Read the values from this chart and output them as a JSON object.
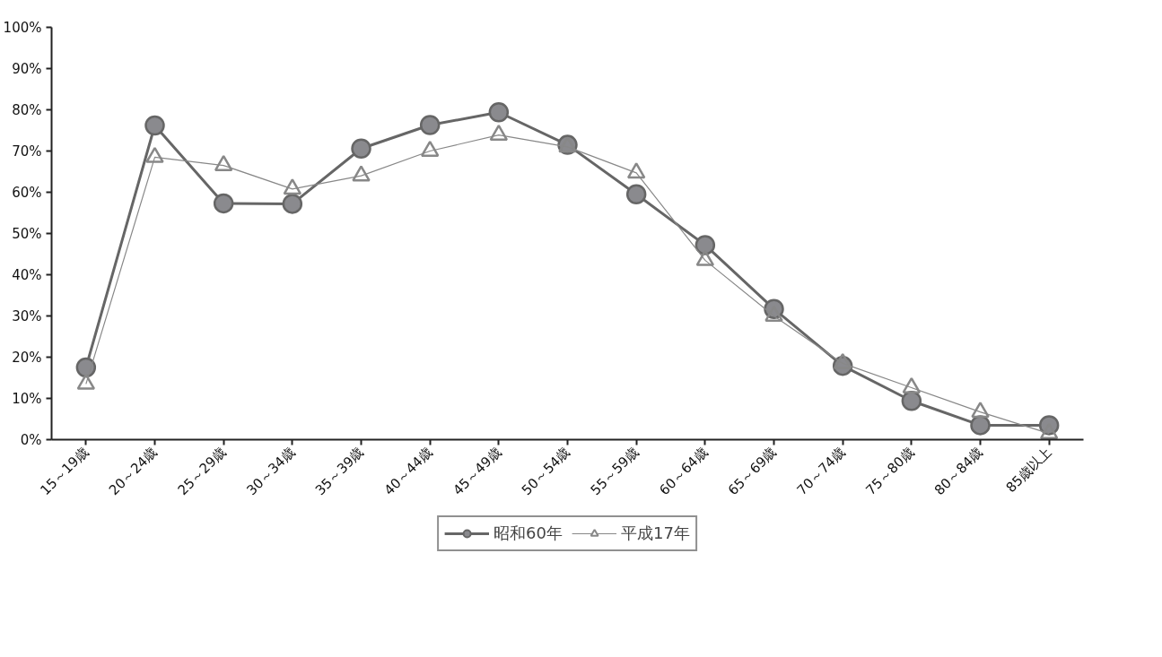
{
  "chart_data": {
    "type": "line",
    "categories": [
      "15～19歳",
      "20～24歳",
      "25～29歳",
      "30～34歳",
      "35～39歳",
      "40～44歳",
      "45～49歳",
      "50～54歳",
      "55～59歳",
      "60～64歳",
      "65～69歳",
      "70～74歳",
      "75～80歳",
      "80～84歳",
      "85歳以上"
    ],
    "series": [
      {
        "name": "昭和60年",
        "color": "#666666",
        "marker": "circle",
        "values": [
          17.5,
          76.2,
          57.3,
          57.2,
          70.6,
          76.3,
          79.4,
          71.5,
          59.5,
          47.2,
          31.7,
          17.9,
          9.4,
          3.5,
          3.5
        ]
      },
      {
        "name": "平成17年",
        "color": "#888888",
        "marker": "triangle",
        "values": [
          13.5,
          68.5,
          66.5,
          60.8,
          64.0,
          70.0,
          73.9,
          71.0,
          64.7,
          43.5,
          30.0,
          18.5,
          12.6,
          6.7,
          1.5
        ]
      }
    ],
    "ylim": [
      0,
      100
    ],
    "yticks": [
      {
        "value": 0,
        "label": "0%"
      },
      {
        "value": 10,
        "label": "10%"
      },
      {
        "value": 20,
        "label": "20%"
      },
      {
        "value": 30,
        "label": "30%"
      },
      {
        "value": 40,
        "label": "40%"
      },
      {
        "value": 50,
        "label": "50%"
      },
      {
        "value": 60,
        "label": "60%"
      },
      {
        "value": 70,
        "label": "70%"
      },
      {
        "value": 80,
        "label": "80%"
      },
      {
        "value": 90,
        "label": "90%"
      },
      {
        "value": 100,
        "label": "100%"
      }
    ],
    "grid": false,
    "legend": "bottom",
    "line_style": "solid"
  }
}
